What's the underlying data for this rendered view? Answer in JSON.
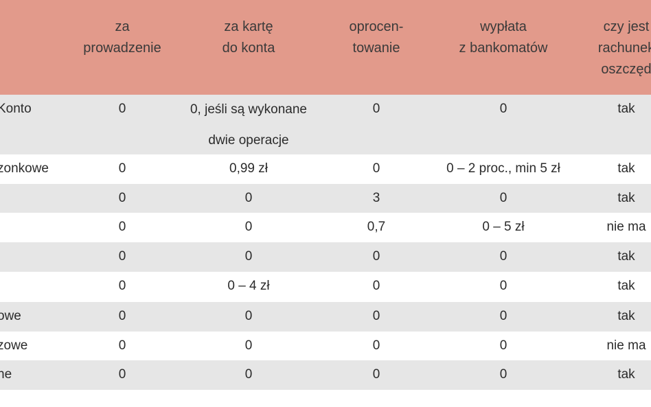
{
  "table": {
    "header": [
      null,
      [
        "za",
        "prowadzenie"
      ],
      [
        "za kartę",
        "do konta"
      ],
      [
        "oprocen-",
        "towanie"
      ],
      [
        "wypłata",
        "z bankomatów"
      ],
      [
        "czy jest",
        "rachunek",
        "oszczęd"
      ]
    ],
    "rows": [
      [
        "Konto",
        "0",
        "0, jeśli są wykonane dwie operacje",
        "0",
        "0",
        "tak"
      ],
      [
        "zonkowe",
        "0",
        "0,99 zł",
        "0",
        "0 – 2 proc., min 5 zł",
        "tak"
      ],
      [
        null,
        "0",
        "0",
        "3",
        "0",
        "tak"
      ],
      [
        null,
        "0",
        "0",
        "0,7",
        "0 – 5 zł",
        "nie ma"
      ],
      [
        null,
        "0",
        "0",
        "0",
        "0",
        "tak"
      ],
      [
        null,
        "0",
        "0 – 4 zł",
        "0",
        "0",
        "tak"
      ],
      [
        "owe",
        "0",
        "0",
        "0",
        "0",
        "tak"
      ],
      [
        "zowe",
        "0",
        "0",
        "0",
        "0",
        "nie ma"
      ],
      [
        "ne",
        "0",
        "0",
        "0",
        "0",
        "tak"
      ]
    ]
  }
}
